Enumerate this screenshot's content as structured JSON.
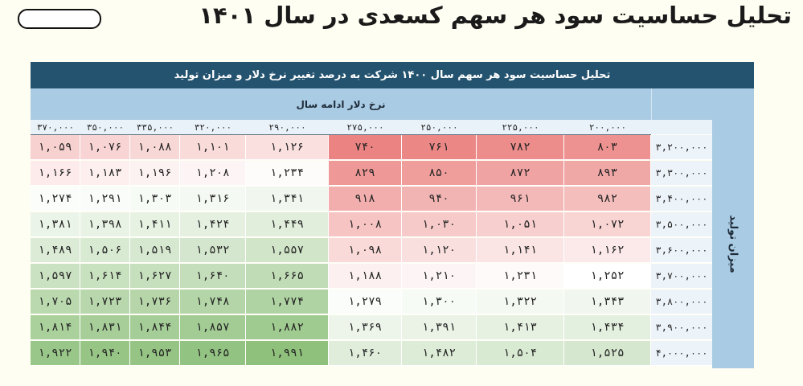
{
  "page": {
    "title": "تحلیل حساسیت سود هر سهم کسعدی در سال ۱۴۰۱"
  },
  "table": {
    "title": "تحلیل حساسیت سود هر سهم سال ۱۴۰۰  شرکت به درصد تغییر نرخ دلار و میزان تولید",
    "column_group_label": "نرخ دلار ادامه سال",
    "row_group_label": "میزان تولید",
    "columns": [
      "۳۷۰,۰۰۰",
      "۳۵۰,۰۰۰",
      "۳۳۵,۰۰۰",
      "۳۲۰,۰۰۰",
      "۲۹۰,۰۰۰",
      "۲۷۵,۰۰۰",
      "۲۵۰,۰۰۰",
      "۲۲۵,۰۰۰",
      "۲۰۰,۰۰۰"
    ],
    "rows": [
      {
        "label": "۳,۲۰۰,۰۰۰",
        "values": [
          "۱,۰۵۹",
          "۱,۰۷۶",
          "۱,۰۸۸",
          "۱,۱۰۱",
          "۱,۱۲۶",
          "۷۴۰",
          "۷۶۱",
          "۷۸۲",
          "۸۰۳"
        ]
      },
      {
        "label": "۳,۳۰۰,۰۰۰",
        "values": [
          "۱,۱۶۶",
          "۱,۱۸۳",
          "۱,۱۹۶",
          "۱,۲۰۸",
          "۱,۲۳۴",
          "۸۲۹",
          "۸۵۰",
          "۸۷۲",
          "۸۹۳"
        ]
      },
      {
        "label": "۳,۴۰۰,۰۰۰",
        "values": [
          "۱,۲۷۴",
          "۱,۲۹۱",
          "۱,۳۰۳",
          "۱,۳۱۶",
          "۱,۳۴۱",
          "۹۱۸",
          "۹۴۰",
          "۹۶۱",
          "۹۸۲"
        ]
      },
      {
        "label": "۳,۵۰۰,۰۰۰",
        "values": [
          "۱,۳۸۱",
          "۱,۳۹۸",
          "۱,۴۱۱",
          "۱,۴۲۴",
          "۱,۴۴۹",
          "۱,۰۰۸",
          "۱,۰۳۰",
          "۱,۰۵۱",
          "۱,۰۷۲"
        ]
      },
      {
        "label": "۳,۶۰۰,۰۰۰",
        "values": [
          "۱,۴۸۹",
          "۱,۵۰۶",
          "۱,۵۱۹",
          "۱,۵۳۲",
          "۱,۵۵۷",
          "۱,۰۹۸",
          "۱,۱۲۰",
          "۱,۱۴۱",
          "۱,۱۶۲"
        ]
      },
      {
        "label": "۳,۷۰۰,۰۰۰",
        "values": [
          "۱,۵۹۷",
          "۱,۶۱۴",
          "۱,۶۲۷",
          "۱,۶۴۰",
          "۱,۶۶۵",
          "۱,۱۸۸",
          "۱,۲۱۰",
          "۱,۲۳۱",
          "۱,۲۵۲"
        ]
      },
      {
        "label": "۳,۸۰۰,۰۰۰",
        "values": [
          "۱,۷۰۵",
          "۱,۷۲۳",
          "۱,۷۳۶",
          "۱,۷۴۸",
          "۱,۷۷۴",
          "۱,۲۷۹",
          "۱,۳۰۰",
          "۱,۳۲۲",
          "۱,۳۴۳"
        ]
      },
      {
        "label": "۳,۹۰۰,۰۰۰",
        "values": [
          "۱,۸۱۴",
          "۱,۸۳۱",
          "۱,۸۴۴",
          "۱,۸۵۷",
          "۱,۸۸۲",
          "۱,۳۶۹",
          "۱,۳۹۱",
          "۱,۴۱۳",
          "۱,۴۳۴"
        ]
      },
      {
        "label": "۴,۰۰۰,۰۰۰",
        "values": [
          "۱,۹۲۲",
          "۱,۹۴۰",
          "۱,۹۵۳",
          "۱,۹۶۵",
          "۱,۹۹۱",
          "۱,۴۶۰",
          "۱,۴۸۲",
          "۱,۵۰۴",
          "۱,۵۲۵"
        ]
      }
    ],
    "numeric_values": [
      [
        1059,
        1076,
        1088,
        1101,
        1126,
        740,
        761,
        782,
        803
      ],
      [
        1166,
        1183,
        1196,
        1208,
        1234,
        829,
        850,
        872,
        893
      ],
      [
        1274,
        1291,
        1303,
        1316,
        1341,
        918,
        940,
        961,
        982
      ],
      [
        1381,
        1398,
        1411,
        1424,
        1449,
        1008,
        1030,
        1051,
        1072
      ],
      [
        1489,
        1506,
        1519,
        1532,
        1557,
        1098,
        1120,
        1141,
        1162
      ],
      [
        1597,
        1614,
        1627,
        1640,
        1665,
        1188,
        1210,
        1231,
        1252
      ],
      [
        1705,
        1723,
        1736,
        1748,
        1774,
        1279,
        1300,
        1322,
        1343
      ],
      [
        1814,
        1831,
        1844,
        1857,
        1882,
        1369,
        1391,
        1413,
        1434
      ],
      [
        1922,
        1940,
        1953,
        1965,
        1991,
        1460,
        1482,
        1504,
        1525
      ]
    ],
    "colors": {
      "header_dark": "#24536f",
      "header_light": "#a9cbe3",
      "low": "#ea8381",
      "mid": "#ffffff",
      "high": "#8fc17d"
    }
  }
}
